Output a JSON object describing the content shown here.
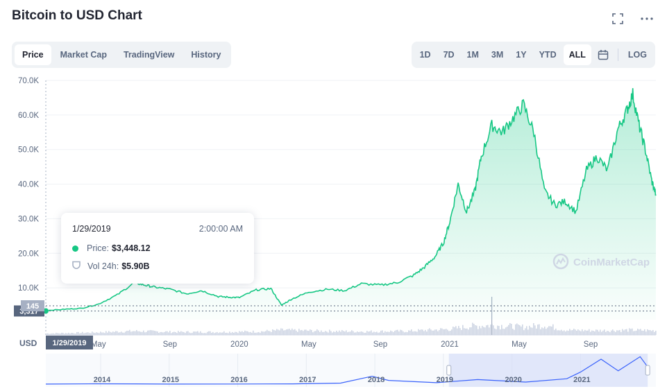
{
  "header": {
    "title": "Bitcoin to USD Chart",
    "fullscreen_icon": "fullscreen-icon",
    "more_icon": "more-icon"
  },
  "tabs": [
    "Price",
    "Market Cap",
    "TradingView",
    "History"
  ],
  "active_tab": "Price",
  "ranges": [
    "1D",
    "7D",
    "1M",
    "3M",
    "1Y",
    "YTD",
    "ALL"
  ],
  "active_range": "ALL",
  "log_label": "LOG",
  "tooltip": {
    "date": "1/29/2019",
    "time": "2:00:00 AM",
    "price_label": "Price:",
    "price_value": "$3,448.12",
    "vol_label": "Vol 24h:",
    "vol_value": "$5.90B"
  },
  "markers": {
    "price": "3,317",
    "volume": "145",
    "date": "1/29/2019"
  },
  "axis_currency": "USD",
  "watermark": "CoinMarketCap",
  "colors": {
    "accent": "#16c784",
    "volume": "#cfd6e4",
    "nav_line": "#3861fb",
    "selection": "#d7def8"
  },
  "chart_data": {
    "type": "area",
    "title": "Bitcoin to USD Chart",
    "ylabel": "USD",
    "ylim": [
      0,
      70000
    ],
    "y_ticks": [
      "70.0K",
      "60.0K",
      "50.0K",
      "40.0K",
      "30.0K",
      "20.0K",
      "10.0K"
    ],
    "x_ticks": [
      "May",
      "Sep",
      "2020",
      "May",
      "Sep",
      "2021",
      "May",
      "Sep"
    ],
    "x_tick_dates": [
      2019.33,
      2019.67,
      2020.0,
      2020.33,
      2020.67,
      2021.0,
      2021.33,
      2021.67
    ],
    "x_range": [
      2019.08,
      2021.98
    ],
    "series": [
      {
        "name": "Price",
        "points": [
          [
            2019.08,
            3448
          ],
          [
            2019.17,
            3800
          ],
          [
            2019.25,
            4100
          ],
          [
            2019.33,
            5300
          ],
          [
            2019.42,
            8000
          ],
          [
            2019.5,
            11500
          ],
          [
            2019.55,
            10800
          ],
          [
            2019.6,
            10200
          ],
          [
            2019.67,
            9600
          ],
          [
            2019.75,
            8300
          ],
          [
            2019.82,
            9200
          ],
          [
            2019.9,
            7500
          ],
          [
            2019.95,
            7300
          ],
          [
            2020.0,
            7200
          ],
          [
            2020.08,
            9400
          ],
          [
            2020.15,
            9800
          ],
          [
            2020.2,
            5000
          ],
          [
            2020.25,
            6800
          ],
          [
            2020.33,
            8800
          ],
          [
            2020.42,
            9600
          ],
          [
            2020.5,
            9200
          ],
          [
            2020.58,
            11200
          ],
          [
            2020.67,
            10800
          ],
          [
            2020.75,
            11500
          ],
          [
            2020.83,
            13700
          ],
          [
            2020.88,
            16000
          ],
          [
            2020.93,
            19000
          ],
          [
            2020.97,
            23000
          ],
          [
            2021.0,
            29000
          ],
          [
            2021.04,
            40000
          ],
          [
            2021.08,
            32000
          ],
          [
            2021.12,
            38000
          ],
          [
            2021.15,
            48000
          ],
          [
            2021.2,
            57000
          ],
          [
            2021.25,
            55000
          ],
          [
            2021.3,
            59000
          ],
          [
            2021.35,
            63000
          ],
          [
            2021.4,
            55000
          ],
          [
            2021.45,
            38000
          ],
          [
            2021.5,
            34000
          ],
          [
            2021.55,
            35000
          ],
          [
            2021.6,
            32000
          ],
          [
            2021.65,
            44000
          ],
          [
            2021.7,
            48000
          ],
          [
            2021.75,
            44000
          ],
          [
            2021.8,
            56000
          ],
          [
            2021.84,
            61000
          ],
          [
            2021.87,
            66000
          ],
          [
            2021.9,
            57000
          ],
          [
            2021.93,
            50000
          ],
          [
            2021.96,
            41000
          ],
          [
            2021.98,
            37000
          ]
        ]
      }
    ],
    "volume_series": {
      "name": "Vol 24h",
      "points": [
        [
          2019.08,
          0.15
        ],
        [
          2019.3,
          0.25
        ],
        [
          2019.5,
          0.4
        ],
        [
          2019.7,
          0.3
        ],
        [
          2019.9,
          0.3
        ],
        [
          2020.1,
          0.35
        ],
        [
          2020.2,
          0.5
        ],
        [
          2020.4,
          0.4
        ],
        [
          2020.6,
          0.35
        ],
        [
          2020.8,
          0.4
        ],
        [
          2021.0,
          0.6
        ],
        [
          2021.1,
          0.9
        ],
        [
          2021.2,
          1.0
        ],
        [
          2021.35,
          0.8
        ],
        [
          2021.45,
          1.0
        ],
        [
          2021.55,
          0.5
        ],
        [
          2021.7,
          0.45
        ],
        [
          2021.85,
          0.5
        ],
        [
          2021.98,
          0.45
        ]
      ]
    },
    "navigator": {
      "years": [
        "2014",
        "2015",
        "2016",
        "2017",
        "2018",
        "2019",
        "2020",
        "2021"
      ],
      "year_values": [
        2014,
        2015,
        2016,
        2017,
        2018,
        2019,
        2020,
        2021
      ],
      "x_range": [
        2013.2,
        2022.1
      ],
      "selected_range": [
        2019.08,
        2021.98
      ],
      "points": [
        [
          2013.2,
          100
        ],
        [
          2013.9,
          800
        ],
        [
          2014.5,
          600
        ],
        [
          2015.0,
          250
        ],
        [
          2016.0,
          400
        ],
        [
          2016.8,
          700
        ],
        [
          2017.5,
          2500
        ],
        [
          2017.96,
          19000
        ],
        [
          2018.2,
          9000
        ],
        [
          2018.9,
          3500
        ],
        [
          2019.5,
          11000
        ],
        [
          2020.2,
          5000
        ],
        [
          2020.8,
          13000
        ],
        [
          2021.0,
          29000
        ],
        [
          2021.3,
          60000
        ],
        [
          2021.55,
          32000
        ],
        [
          2021.87,
          66000
        ],
        [
          2022.0,
          37000
        ]
      ]
    }
  }
}
